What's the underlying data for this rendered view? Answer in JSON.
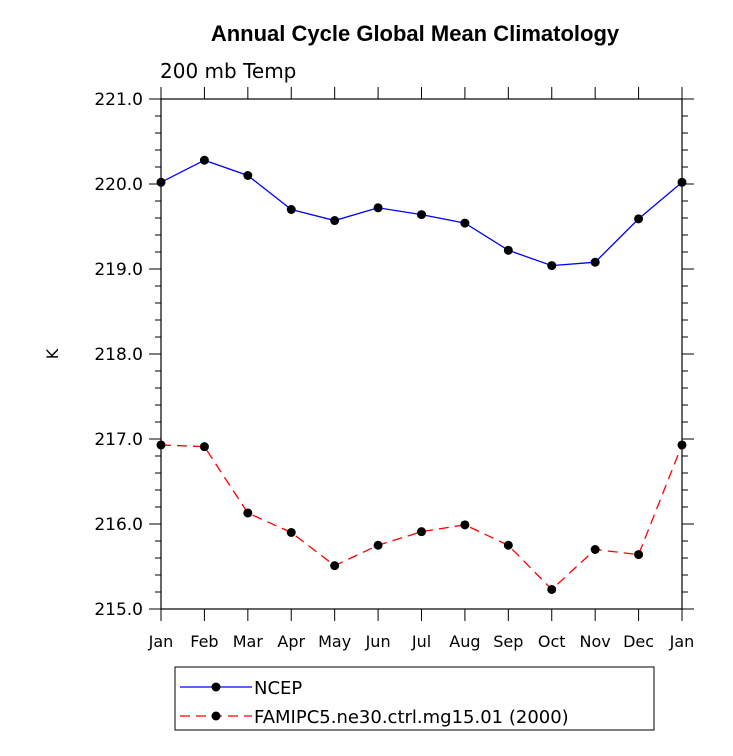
{
  "chart_data": {
    "type": "line",
    "title": "Annual Cycle Global Mean Climatology",
    "subtitle": "200 mb Temp",
    "xlabel": "",
    "ylabel": "K",
    "categories": [
      "Jan",
      "Feb",
      "Mar",
      "Apr",
      "May",
      "Jun",
      "Jul",
      "Aug",
      "Sep",
      "Oct",
      "Nov",
      "Dec",
      "Jan"
    ],
    "ylim": [
      215.0,
      221.0
    ],
    "yticks": [
      "215.0",
      "216.0",
      "217.0",
      "218.0",
      "219.0",
      "220.0",
      "221.0"
    ],
    "series": [
      {
        "name": "NCEP",
        "color": "#0000ff",
        "dash": "solid",
        "values": [
          220.02,
          220.28,
          220.1,
          219.7,
          219.57,
          219.72,
          219.64,
          219.54,
          219.22,
          219.04,
          219.08,
          219.59,
          220.02
        ]
      },
      {
        "name": "FAMIPC5.ne30.ctrl.mg15.01 (2000)",
        "color": "#ff0000",
        "dash": "dashed",
        "values": [
          216.93,
          216.91,
          216.13,
          215.9,
          215.51,
          215.75,
          215.91,
          215.99,
          215.75,
          215.23,
          215.7,
          215.64,
          216.93
        ]
      }
    ],
    "legend": "bottom"
  }
}
